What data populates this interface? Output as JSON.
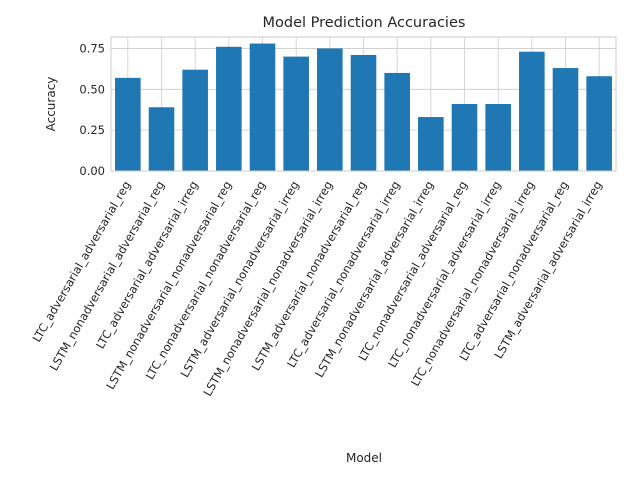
{
  "chart_data": {
    "type": "bar",
    "title": "Model Prediction Accuracies",
    "xlabel": "Model",
    "ylabel": "Accuracy",
    "categories": [
      "LTC_adversarial_adversarial_reg",
      "LSTM_nonadversarial_adversarial_reg",
      "LTC_adversarial_adversarial_irreg",
      "LSTM_nonadversarial_nonadversarial_reg",
      "LTC_nonadversarial_nonadversarial_reg",
      "LSTM_adversarial_nonadversarial_irreg",
      "LSTM_nonadversarial_nonadversarial_irreg",
      "LSTM_adversarial_nonadversarial_reg",
      "LTC_adversarial_nonadversarial_irreg",
      "LSTM_nonadversarial_adversarial_irreg",
      "LTC_nonadversarial_adversarial_reg",
      "LTC_nonadversarial_adversarial_irreg",
      "LTC_nonadversarial_nonadversarial_irreg",
      "LTC_adversarial_nonadversarial_reg",
      "LSTM_adversarial_adversarial_irreg"
    ],
    "values": [
      0.57,
      0.39,
      0.62,
      0.76,
      0.78,
      0.7,
      0.75,
      0.71,
      0.6,
      0.33,
      0.41,
      0.41,
      0.73,
      0.63,
      0.58
    ],
    "yticks": [
      "0.00",
      "0.25",
      "0.50",
      "0.75"
    ],
    "ylim": [
      0,
      0.82
    ],
    "grid": true,
    "color": "#1f77b4"
  }
}
